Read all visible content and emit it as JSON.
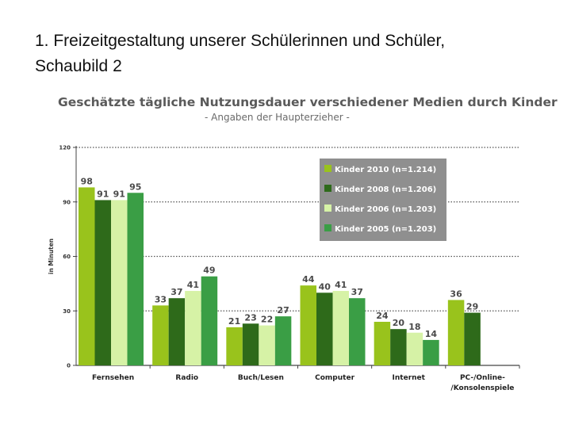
{
  "slide": {
    "title_line1": "1. Freizeitgestaltung unserer Schülerinnen und Schüler,",
    "title_line2": "Schaubild 2"
  },
  "chart_data": {
    "type": "bar",
    "title": "Geschätzte tägliche Nutzungsdauer verschiedener Medien durch Kinder",
    "subtitle": "- Angaben der Haupterzieher -",
    "xlabel": "",
    "ylabel": "in Minuten",
    "ylim": [
      0,
      120
    ],
    "yticks": [
      0,
      30,
      60,
      90,
      120
    ],
    "grid": true,
    "legend_position": "top-right",
    "categories": [
      [
        "Fernsehen"
      ],
      [
        "Radio"
      ],
      [
        "Buch/Lesen"
      ],
      [
        "Computer"
      ],
      [
        "Internet"
      ],
      [
        "PC-/Online-",
        "/Konsolenspiele"
      ]
    ],
    "series": [
      {
        "name": "Kinder 2010 (n=1.214)",
        "color": "#99c31c",
        "values": [
          98,
          33,
          21,
          44,
          24,
          36
        ]
      },
      {
        "name": "Kinder 2008 (n=1.206)",
        "color": "#2e6a1a",
        "values": [
          91,
          37,
          23,
          40,
          20,
          29
        ]
      },
      {
        "name": "Kinder 2006 (n=1.203)",
        "color": "#d6f2a6",
        "values": [
          91,
          41,
          22,
          41,
          18,
          null
        ]
      },
      {
        "name": "Kinder 2005 (n=1.203)",
        "color": "#3a9e45",
        "values": [
          95,
          49,
          27,
          37,
          14,
          null
        ]
      }
    ],
    "legend_bg": "#8f8f8f"
  }
}
